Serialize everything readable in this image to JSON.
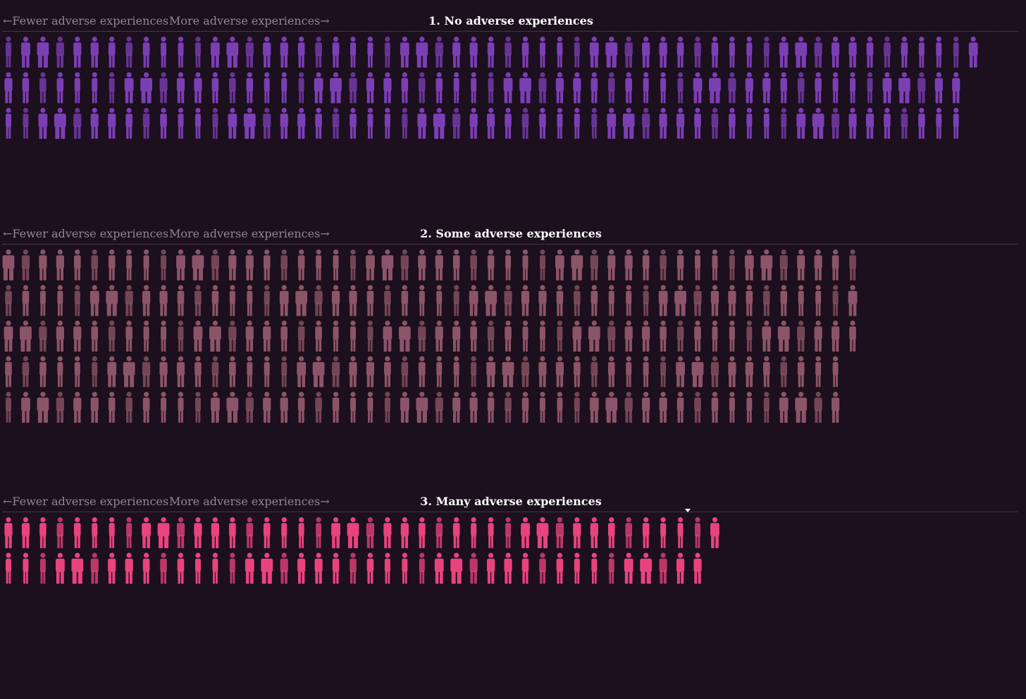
{
  "nav": {
    "fewer_label": "←Fewer adverse experiences",
    "more_label": "More adverse experiences→"
  },
  "chart_data": {
    "type": "unit",
    "groups": [
      {
        "title": "1. No adverse experiences",
        "color": "#7b3fb4",
        "row_counts": [
          57,
          56,
          56
        ]
      },
      {
        "title": "2. Some adverse experiences",
        "color": "#8c5468",
        "row_counts": [
          50,
          50,
          50,
          49,
          49
        ]
      },
      {
        "title": "3. Many adverse experiences",
        "color": "#e8437f",
        "row_counts": [
          42,
          41
        ]
      }
    ]
  }
}
